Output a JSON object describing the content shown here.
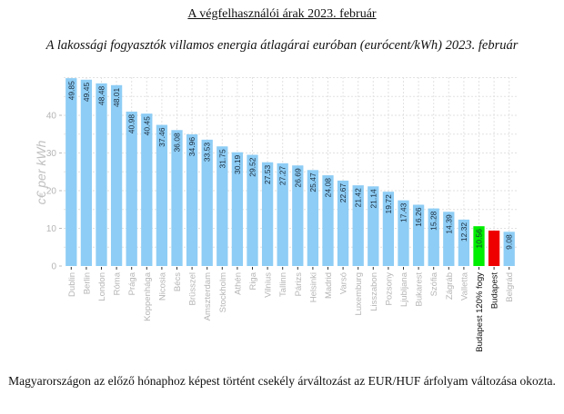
{
  "header": {
    "title": "A végfelhasználói árak 2023. február",
    "subtitle": "A lakossági fogyasztók villamos energia átlagárai euróban (eurócent/kWh) 2023. február"
  },
  "footer": {
    "note": "Magyarországon az előző hónaphoz képest történt csekély árváltozást az EUR/HUF árfolyam változása okozta."
  },
  "chart_data": {
    "type": "bar",
    "title": "A lakossági fogyasztók villamos energia átlagárai euróban (eurócent/kWh) 2023. február",
    "xlabel": "",
    "ylabel": "c€ per kWh",
    "ylim": [
      0,
      50
    ],
    "yticks": [
      0,
      10,
      20,
      30,
      40
    ],
    "grid": true,
    "categories": [
      "Dublin",
      "Berlin",
      "London",
      "Róma",
      "Prága",
      "Koppenhága",
      "Nicosia",
      "Bécs",
      "Brüsszel",
      "Amszterdam",
      "Stockholm",
      "Athén",
      "Riga",
      "Vilnius",
      "Tallinn",
      "Párizs",
      "Helsinki",
      "Madrid",
      "Varsó",
      "Luxemburg",
      "Lisszabon",
      "Pozsony",
      "Ljubljana",
      "Bukarest",
      "Szófia",
      "Zágráb",
      "Valletta",
      "Budapest 120% fogy",
      "Budapest",
      "Belgrád"
    ],
    "values": [
      49.85,
      49.45,
      48.48,
      48.01,
      40.98,
      40.45,
      37.46,
      36.08,
      34.96,
      33.53,
      31.75,
      30.19,
      29.52,
      27.53,
      27.27,
      26.69,
      25.47,
      24.08,
      22.67,
      21.42,
      21.14,
      19.72,
      17.43,
      16.26,
      15.28,
      14.39,
      12.32,
      10.56,
      9.4,
      9.08
    ],
    "value_labels": [
      "49.85",
      "49.45",
      "48.48",
      "48.01",
      "40.98",
      "40.45",
      "37.46",
      "36.08",
      "34.96",
      "33.53",
      "31.75",
      "30.19",
      "29.52",
      "27.53",
      "27.27",
      "26.69",
      "25.47",
      "24.08",
      "22.67",
      "21.42",
      "21.14",
      "19.72",
      "17.43",
      "16.26",
      "15.28",
      "14.39",
      "12.32",
      "10.56",
      "",
      "9.08"
    ],
    "colors": {
      "default": "#8ecdf5",
      "highlight_120": "#00ee00",
      "highlight_budapest": "#ee0000"
    },
    "bar_colors": [
      "default",
      "default",
      "default",
      "default",
      "default",
      "default",
      "default",
      "default",
      "default",
      "default",
      "default",
      "default",
      "default",
      "default",
      "default",
      "default",
      "default",
      "default",
      "default",
      "default",
      "default",
      "default",
      "default",
      "default",
      "default",
      "default",
      "default",
      "highlight_120",
      "highlight_budapest",
      "default"
    ],
    "highlighted_categories": [
      "Budapest 120% fogy",
      "Budapest"
    ]
  }
}
